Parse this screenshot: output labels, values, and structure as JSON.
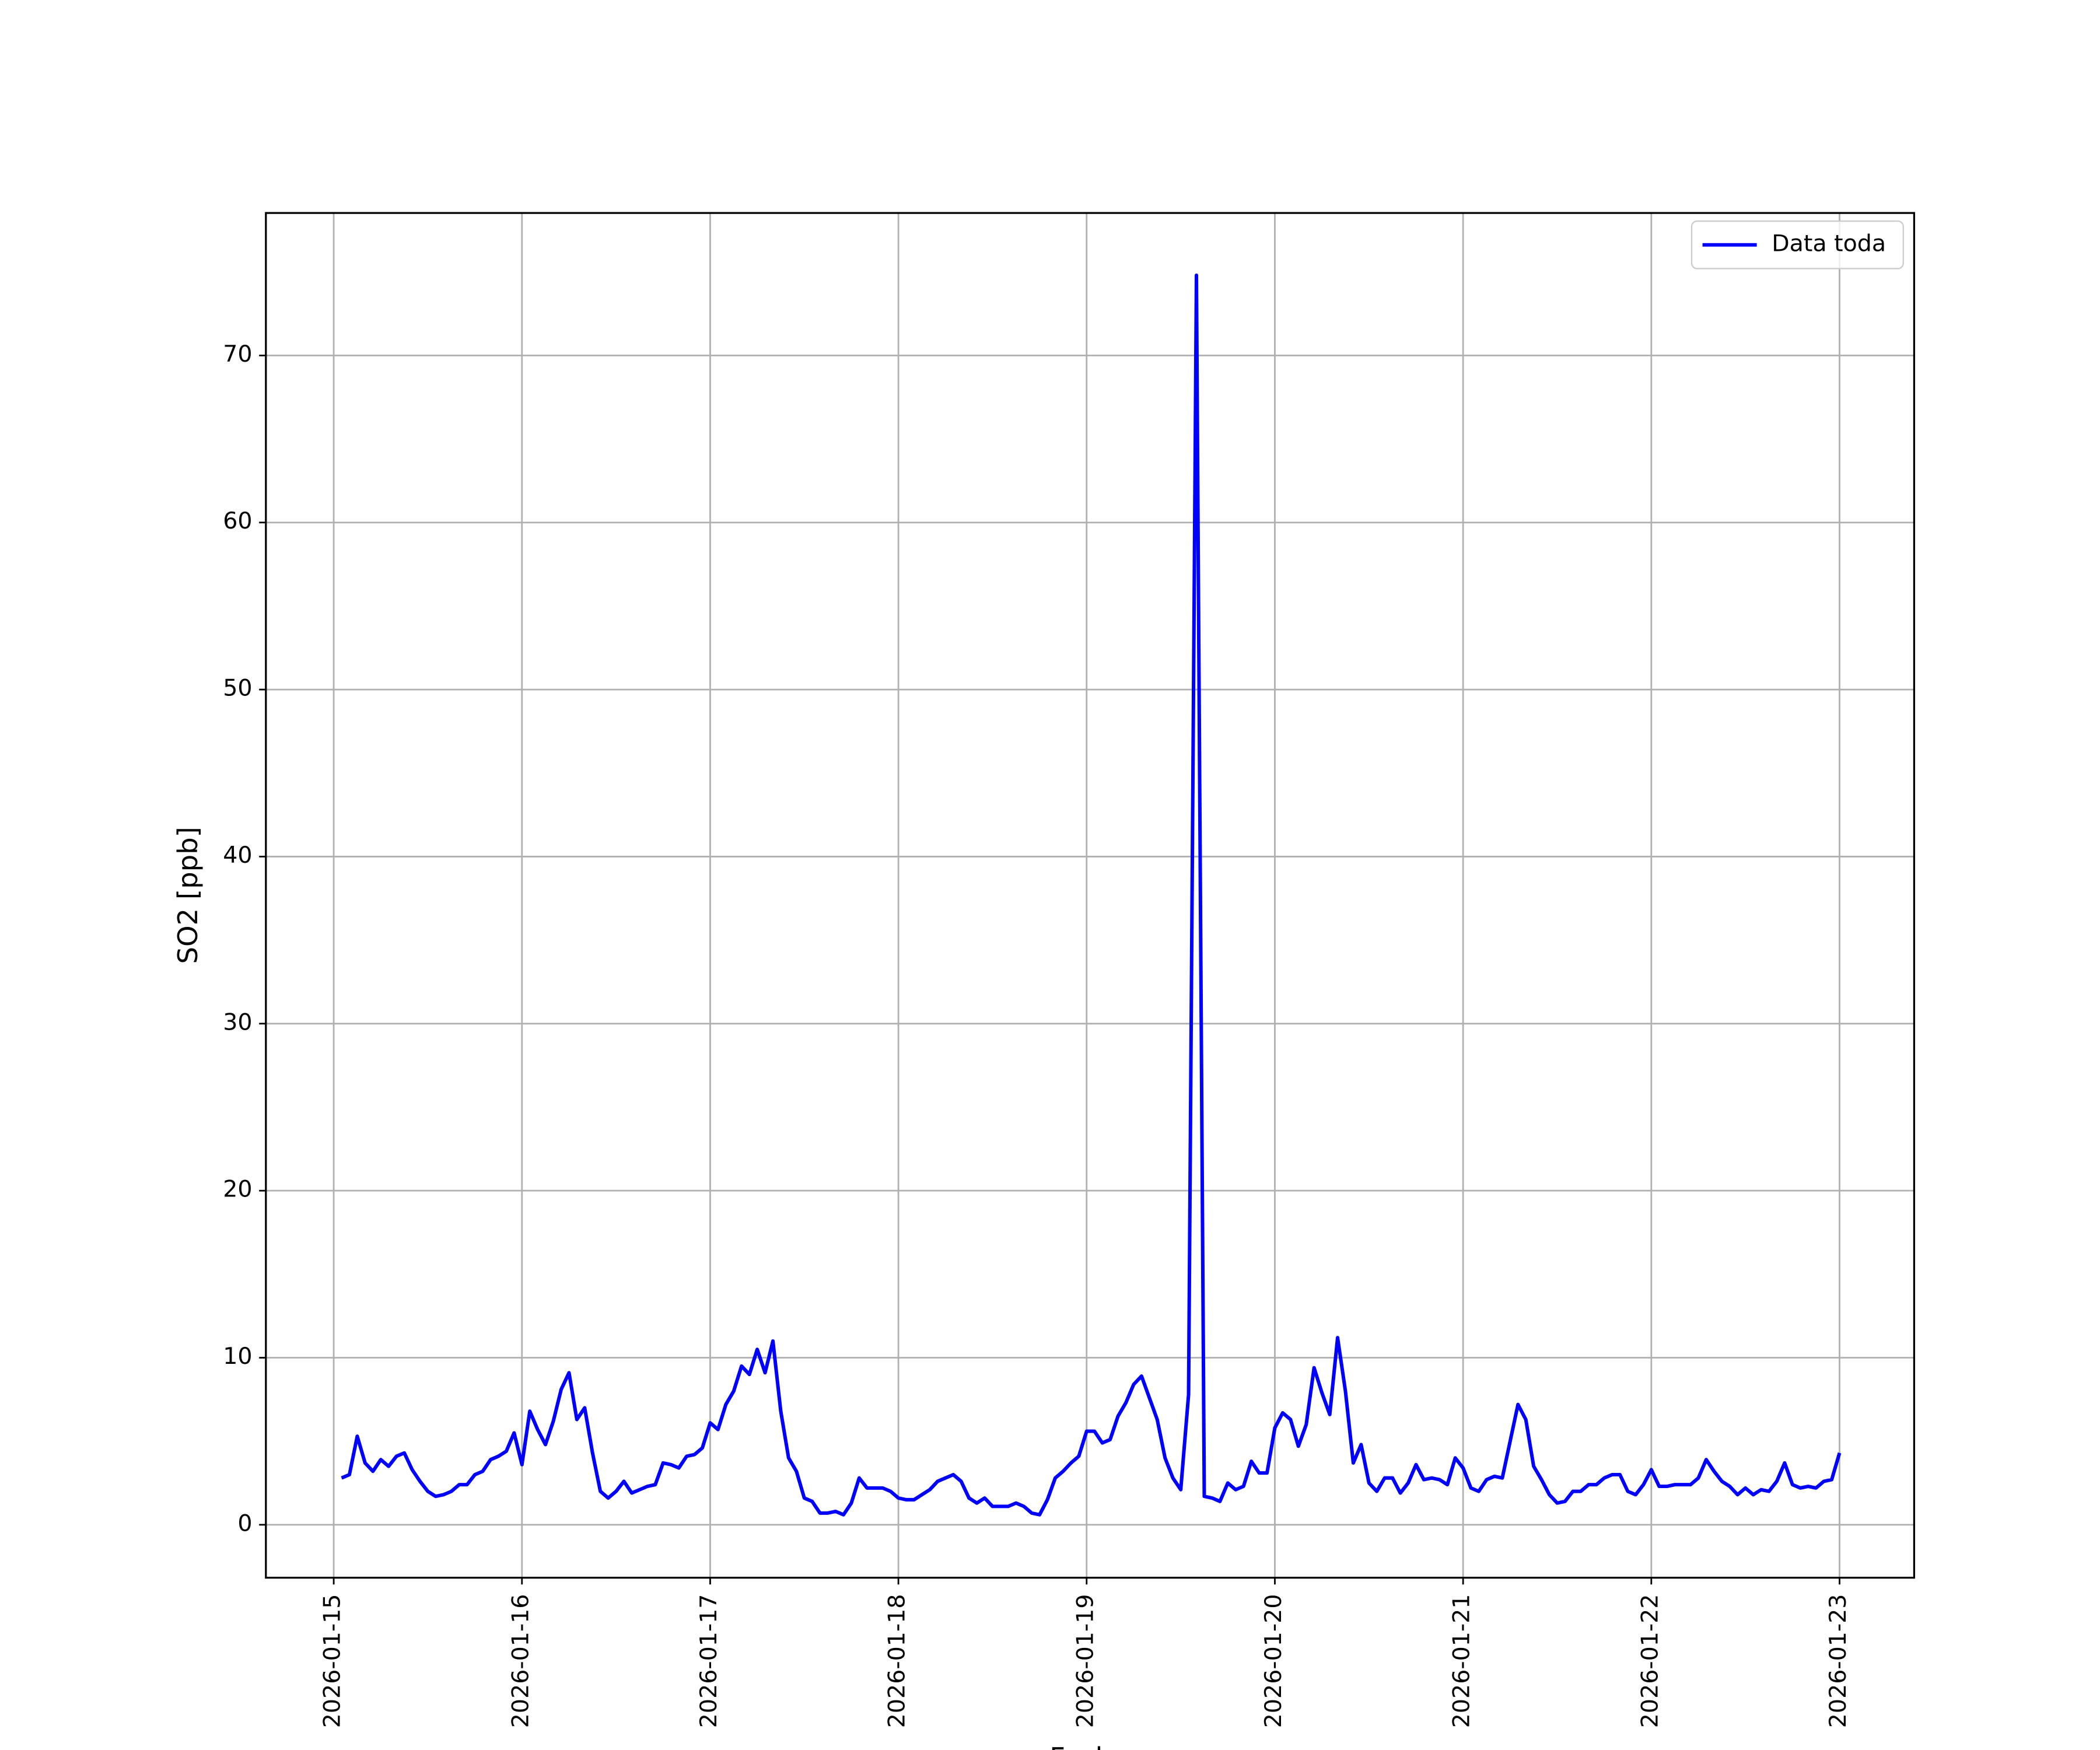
{
  "chart_data": {
    "type": "line",
    "x_label": "Fecha",
    "y_label": "SO2 [ppb]",
    "xticks": [
      "2026-01-15",
      "2026-01-16",
      "2026-01-17",
      "2026-01-18",
      "2026-01-19",
      "2026-01-20",
      "2026-01-21",
      "2026-01-22",
      "2026-01-23"
    ],
    "series": [
      {
        "name": "Data toda",
        "color": "#0000ff",
        "values": [
          2.8,
          3.0,
          5.3,
          3.7,
          3.2,
          3.9,
          3.5,
          4.1,
          4.3,
          3.3,
          2.6,
          2.0,
          1.7,
          1.8,
          2.0,
          2.4,
          2.4,
          3.0,
          3.2,
          3.9,
          4.1,
          4.4,
          5.5,
          3.6,
          6.8,
          5.7,
          4.8,
          6.2,
          8.1,
          9.1,
          6.3,
          7.0,
          4.3,
          2.0,
          1.6,
          2.0,
          2.6,
          1.9,
          2.1,
          2.3,
          2.4,
          3.7,
          3.6,
          3.4,
          4.1,
          4.2,
          4.6,
          6.1,
          5.7,
          7.2,
          8.0,
          9.5,
          9.0,
          10.5,
          9.1,
          11.0,
          6.8,
          4.0,
          3.2,
          1.6,
          1.4,
          0.7,
          0.7,
          0.8,
          0.6,
          1.3,
          2.8,
          2.2,
          2.2,
          2.2,
          2.0,
          1.6,
          1.5,
          1.5,
          1.8,
          2.1,
          2.6,
          2.8,
          3.0,
          2.6,
          1.6,
          1.3,
          1.6,
          1.1,
          1.1,
          1.1,
          1.3,
          1.1,
          0.7,
          0.6,
          1.5,
          2.8,
          3.2,
          3.7,
          4.1,
          5.6,
          5.6,
          4.9,
          5.1,
          6.5,
          7.3,
          8.4,
          8.9,
          7.6,
          6.3,
          4.0,
          2.8,
          2.1,
          7.8,
          74.8,
          1.7,
          1.6,
          1.4,
          2.5,
          2.1,
          2.3,
          3.8,
          3.1,
          3.1,
          5.8,
          6.7,
          6.3,
          4.7,
          6.0,
          9.4,
          7.9,
          6.6,
          11.2,
          8.0,
          3.7,
          4.8,
          2.5,
          2.0,
          2.8,
          2.8,
          1.9,
          2.5,
          3.6,
          2.7,
          2.8,
          2.7,
          2.4,
          4.0,
          3.4,
          2.2,
          2.0,
          2.7,
          2.9,
          2.8,
          5.0,
          7.2,
          6.3,
          3.5,
          2.7,
          1.8,
          1.3,
          1.4,
          2.0,
          2.0,
          2.4,
          2.4,
          2.8,
          3.0,
          3.0,
          2.0,
          1.8,
          2.4,
          3.3,
          2.3,
          2.3,
          2.4,
          2.4,
          2.4,
          2.8,
          3.9,
          3.2,
          2.6,
          2.3,
          1.8,
          2.2,
          1.8,
          2.1,
          2.0,
          2.6,
          3.7,
          2.4,
          2.2,
          2.3,
          2.2,
          2.6,
          2.7,
          4.3
        ]
      }
    ],
    "ylim": [
      -3.17,
      78.53
    ],
    "yticks": [
      0,
      10,
      20,
      30,
      40,
      50,
      60,
      70
    ],
    "grid": true,
    "legend": "upper right"
  }
}
